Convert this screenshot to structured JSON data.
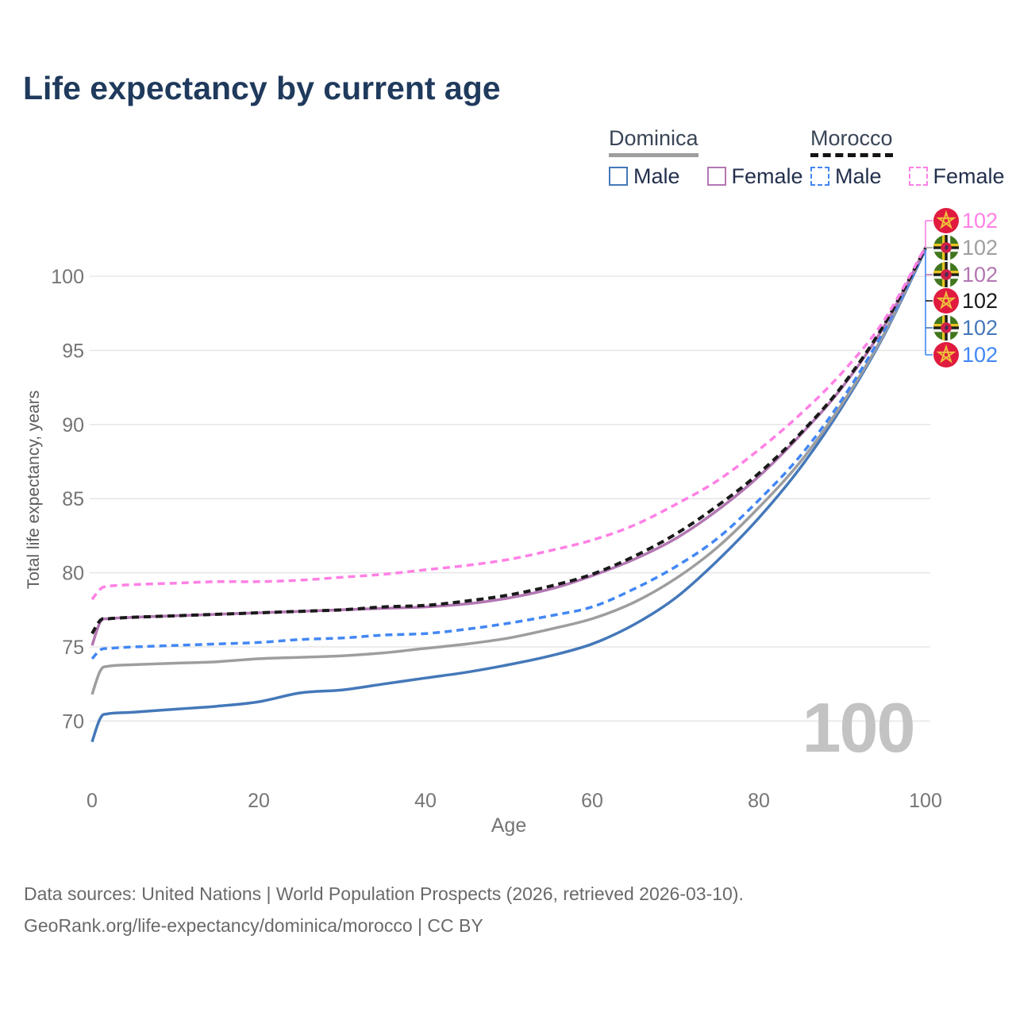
{
  "title": "Life expectancy by current age",
  "legend": {
    "groups": [
      {
        "id": "dominica",
        "label": "Dominica",
        "line_color": "#9e9e9e",
        "dashed": false,
        "items": [
          {
            "id": "dominica-male",
            "label": "Male",
            "color": "#4478b9",
            "dashed": false
          },
          {
            "id": "dominica-female",
            "label": "Female",
            "color": "#b277b2",
            "dashed": false
          }
        ]
      },
      {
        "id": "morocco",
        "label": "Morocco",
        "line_color": "#141414",
        "dashed": true,
        "items": [
          {
            "id": "morocco-male",
            "label": "Male",
            "color": "#4287f5",
            "dashed": true
          },
          {
            "id": "morocco-female",
            "label": "Female",
            "color": "#ff80e5",
            "dashed": true
          }
        ]
      }
    ]
  },
  "chart_data": {
    "type": "line",
    "title": "Life expectancy by current age",
    "xlabel": "Age",
    "ylabel": "Total life expectancy, years",
    "xlim": [
      0,
      100
    ],
    "ylim": [
      67.5,
      103
    ],
    "xticks": [
      0,
      20,
      40,
      60,
      80,
      100
    ],
    "yticks": [
      70,
      75,
      80,
      85,
      90,
      95,
      100
    ],
    "grid": "horizontal",
    "age_cursor_label": "100",
    "ages": [
      0,
      1,
      2,
      5,
      10,
      15,
      20,
      25,
      30,
      35,
      40,
      45,
      50,
      55,
      60,
      65,
      70,
      75,
      80,
      85,
      90,
      95,
      100
    ],
    "series": [
      {
        "id": "dominica-male",
        "name": "Dominica Male",
        "country": "Dominica",
        "flag": "dominica",
        "color": "#4478b9",
        "dashed": false,
        "end_label": "102",
        "values": [
          68.6,
          70.2,
          70.5,
          70.6,
          70.8,
          71.0,
          71.3,
          71.9,
          72.1,
          72.5,
          72.9,
          73.3,
          73.8,
          74.4,
          75.2,
          76.5,
          78.3,
          80.8,
          83.7,
          87.1,
          91.2,
          96.0,
          101.8
        ]
      },
      {
        "id": "dominica",
        "name": "Dominica",
        "country": "Dominica",
        "flag": "dominica",
        "color": "#9e9e9e",
        "dashed": false,
        "end_label": "102",
        "values": [
          71.8,
          73.4,
          73.7,
          73.8,
          73.9,
          74.0,
          74.2,
          74.3,
          74.4,
          74.6,
          74.9,
          75.2,
          75.6,
          76.2,
          76.9,
          78.0,
          79.6,
          81.7,
          84.4,
          87.5,
          91.4,
          96.1,
          101.9
        ]
      },
      {
        "id": "morocco-male",
        "name": "Morocco Male",
        "country": "Morocco",
        "flag": "morocco",
        "color": "#4287f5",
        "dashed": true,
        "end_label": "102",
        "values": [
          74.2,
          74.8,
          74.9,
          75.0,
          75.1,
          75.2,
          75.3,
          75.5,
          75.6,
          75.8,
          75.9,
          76.2,
          76.6,
          77.1,
          77.7,
          78.9,
          80.4,
          82.3,
          84.9,
          87.9,
          91.7,
          96.3,
          101.8
        ]
      },
      {
        "id": "dominica-female",
        "name": "Dominica Female",
        "country": "Dominica",
        "flag": "dominica",
        "color": "#b277b2",
        "dashed": false,
        "end_label": "102",
        "values": [
          75.1,
          76.7,
          76.9,
          77.0,
          77.1,
          77.2,
          77.3,
          77.4,
          77.5,
          77.6,
          77.7,
          77.9,
          78.3,
          78.9,
          79.8,
          80.9,
          82.3,
          84.2,
          86.5,
          89.3,
          92.5,
          96.6,
          101.9
        ]
      },
      {
        "id": "morocco",
        "name": "Morocco",
        "country": "Morocco",
        "flag": "morocco",
        "color": "#1a1a1a",
        "dashed": true,
        "end_label": "102",
        "values": [
          75.9,
          76.8,
          76.9,
          77.0,
          77.1,
          77.2,
          77.3,
          77.4,
          77.5,
          77.7,
          77.8,
          78.1,
          78.5,
          79.1,
          79.9,
          81.1,
          82.6,
          84.5,
          86.7,
          89.4,
          92.6,
          96.7,
          101.9
        ]
      },
      {
        "id": "morocco-female",
        "name": "Morocco Female",
        "country": "Morocco",
        "flag": "morocco",
        "color": "#ff80e5",
        "dashed": true,
        "end_label": "102",
        "values": [
          78.2,
          78.9,
          79.1,
          79.2,
          79.3,
          79.4,
          79.4,
          79.5,
          79.7,
          79.9,
          80.2,
          80.5,
          80.9,
          81.5,
          82.2,
          83.2,
          84.6,
          86.2,
          88.3,
          90.7,
          93.5,
          97.0,
          102.0
        ]
      }
    ],
    "endpoint_order": [
      "morocco-female",
      "dominica",
      "dominica-female",
      "morocco",
      "dominica-male",
      "morocco-male"
    ],
    "legend_position": "top-right"
  },
  "colors": {
    "title_text": "#1f3a5c",
    "axis_text": "#757575",
    "axis_title_text": "#5c5c5c",
    "grid": "#e7e7e7",
    "watermark": "#c3c3c3",
    "footer_text": "#696969"
  },
  "footer": {
    "line1": "Data sources: United Nations | World Population Prospects (2026, retrieved 2026-03-10).",
    "line2": "GeoRank.org/life-expectancy/dominica/morocco | CC BY"
  }
}
